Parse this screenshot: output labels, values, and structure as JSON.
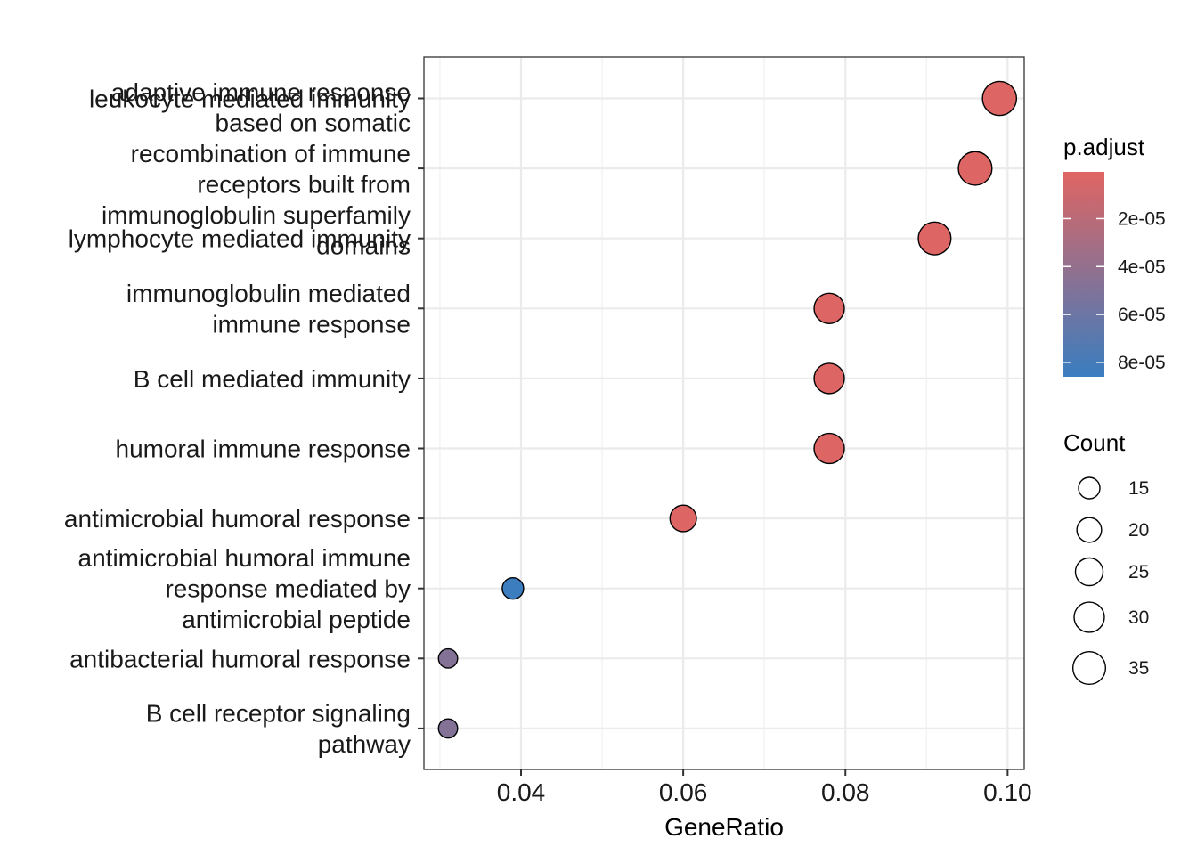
{
  "chart_data": {
    "type": "scatter",
    "xlabel": "GeneRatio",
    "ylabel": "",
    "xlim": [
      0.028,
      0.102
    ],
    "x_ticks": [
      "0.04",
      "0.06",
      "0.08",
      "0.10"
    ],
    "grid": true,
    "legend_position": "right",
    "terms": [
      {
        "label": [
          "B cell receptor signaling",
          "pathway"
        ],
        "gene_ratio": 0.031,
        "count": 12,
        "p_adjust": 4.8e-05
      },
      {
        "label": [
          "antibacterial humoral response"
        ],
        "gene_ratio": 0.031,
        "count": 12,
        "p_adjust": 4.8e-05
      },
      {
        "label": [
          "antimicrobial humoral immune",
          "response mediated by",
          "antimicrobial peptide"
        ],
        "gene_ratio": 0.039,
        "count": 15,
        "p_adjust": 8.5e-05
      },
      {
        "label": [
          "antimicrobial humoral response"
        ],
        "gene_ratio": 0.06,
        "count": 23,
        "p_adjust": 2e-06
      },
      {
        "label": [
          "humoral immune response"
        ],
        "gene_ratio": 0.078,
        "count": 30,
        "p_adjust": 2e-06
      },
      {
        "label": [
          "B cell mediated immunity"
        ],
        "gene_ratio": 0.078,
        "count": 30,
        "p_adjust": 2e-06
      },
      {
        "label": [
          "immunoglobulin mediated",
          "immune response"
        ],
        "gene_ratio": 0.078,
        "count": 30,
        "p_adjust": 2e-06
      },
      {
        "label": [
          "lymphocyte mediated immunity"
        ],
        "gene_ratio": 0.091,
        "count": 35,
        "p_adjust": 2e-06
      },
      {
        "label": [
          "adaptive immune response",
          "based on somatic",
          "recombination of immune",
          "receptors built from",
          "immunoglobulin superfamily",
          "domains"
        ],
        "gene_ratio": 0.096,
        "count": 37,
        "p_adjust": 2e-06
      },
      {
        "label": [
          "leukocyte mediated immunity"
        ],
        "gene_ratio": 0.099,
        "count": 38,
        "p_adjust": 2e-06
      }
    ],
    "color_legend": {
      "title": "p.adjust",
      "low_color": "#E06562",
      "high_color": "#3A7DC0",
      "range": [
        5e-07,
        8.6e-05
      ],
      "ticks": [
        {
          "value": 2e-05,
          "label": "2e-05"
        },
        {
          "value": 4e-05,
          "label": "4e-05"
        },
        {
          "value": 6e-05,
          "label": "6e-05"
        },
        {
          "value": 8e-05,
          "label": "8e-05"
        }
      ]
    },
    "size_legend": {
      "title": "Count",
      "items": [
        {
          "count": 15,
          "label": "15"
        },
        {
          "count": 20,
          "label": "20"
        },
        {
          "count": 25,
          "label": "25"
        },
        {
          "count": 30,
          "label": "30"
        },
        {
          "count": 35,
          "label": "35"
        }
      ]
    }
  }
}
